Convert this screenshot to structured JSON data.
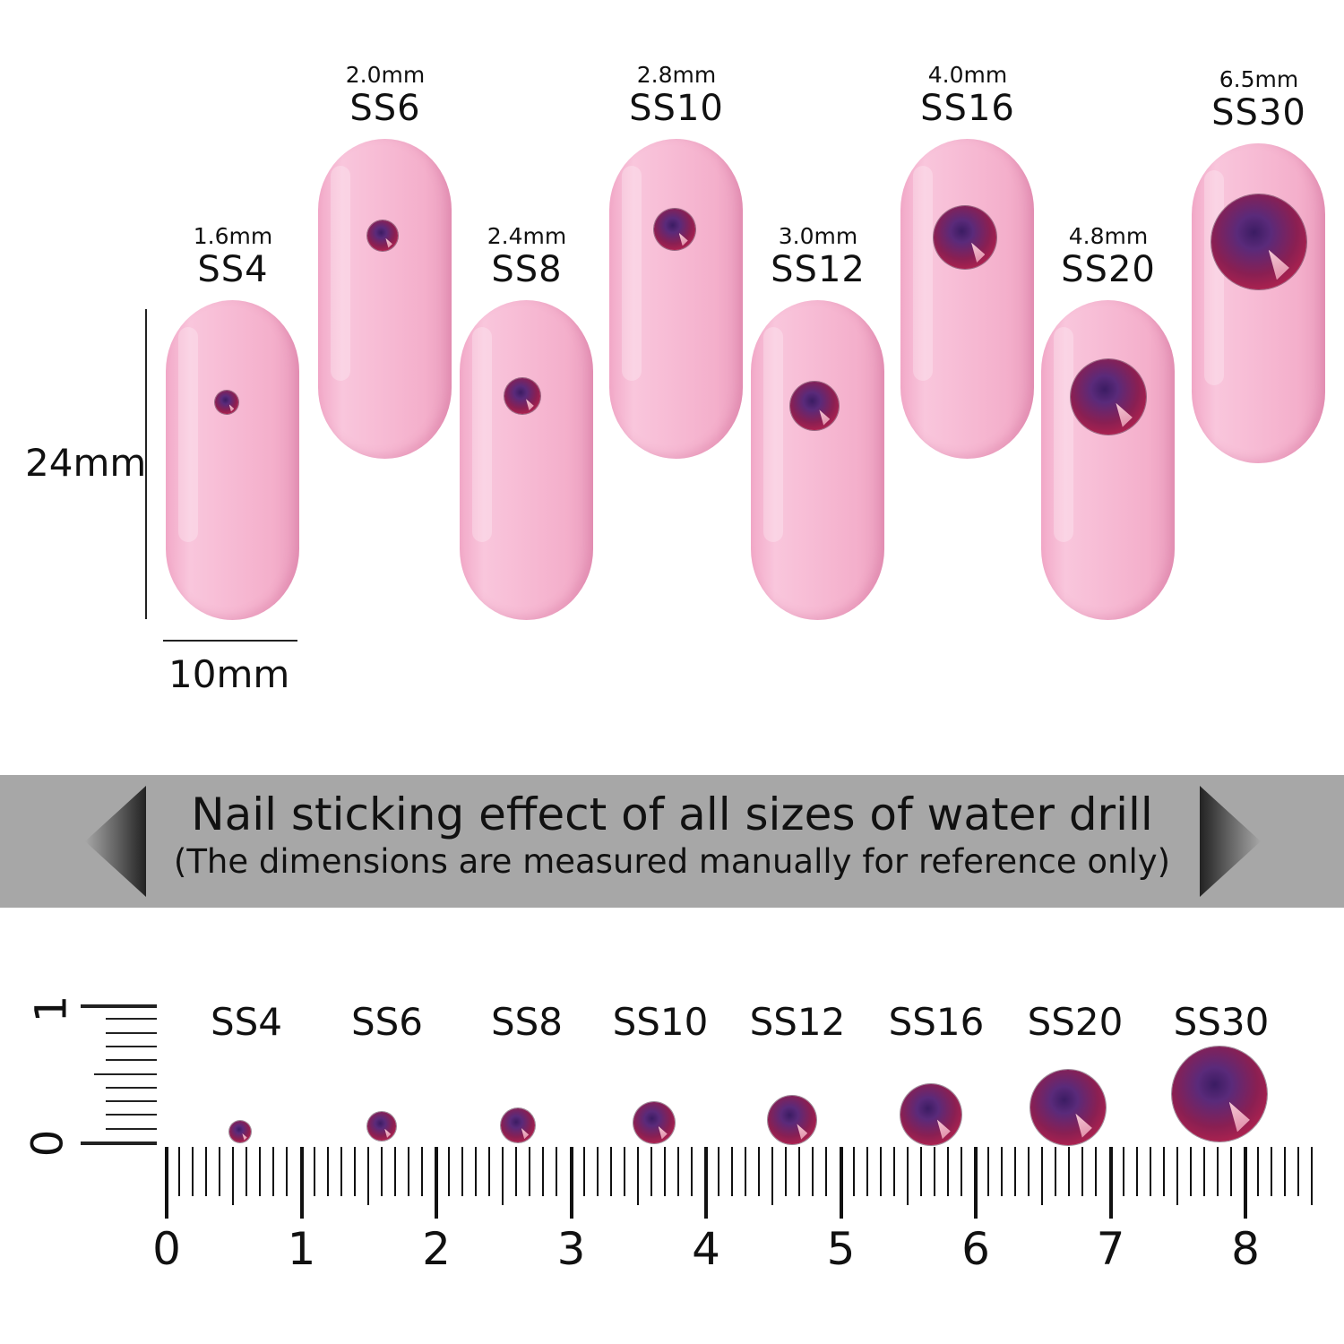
{
  "nails": [
    {
      "size_mm": "1.6mm",
      "code": "SS4"
    },
    {
      "size_mm": "2.0mm",
      "code": "SS6"
    },
    {
      "size_mm": "2.4mm",
      "code": "SS8"
    },
    {
      "size_mm": "2.8mm",
      "code": "SS10"
    },
    {
      "size_mm": "3.0mm",
      "code": "SS12"
    },
    {
      "size_mm": "4.0mm",
      "code": "SS16"
    },
    {
      "size_mm": "4.8mm",
      "code": "SS20"
    },
    {
      "size_mm": "6.5mm",
      "code": "SS30"
    }
  ],
  "dimensions": {
    "length": "24mm",
    "width": "10mm"
  },
  "banner": {
    "title": "Nail sticking effect of all sizes of water drill",
    "subtitle": "(The dimensions are measured manually for reference only)"
  },
  "ruler": {
    "labels": [
      "0",
      "1",
      "2",
      "3",
      "4",
      "5",
      "6",
      "7",
      "8"
    ],
    "vertical_labels": [
      "0",
      "1"
    ]
  },
  "colors": {
    "nail": "#f7bcd5",
    "banner": "#a7a7a7",
    "gem": "#8a1f52"
  }
}
